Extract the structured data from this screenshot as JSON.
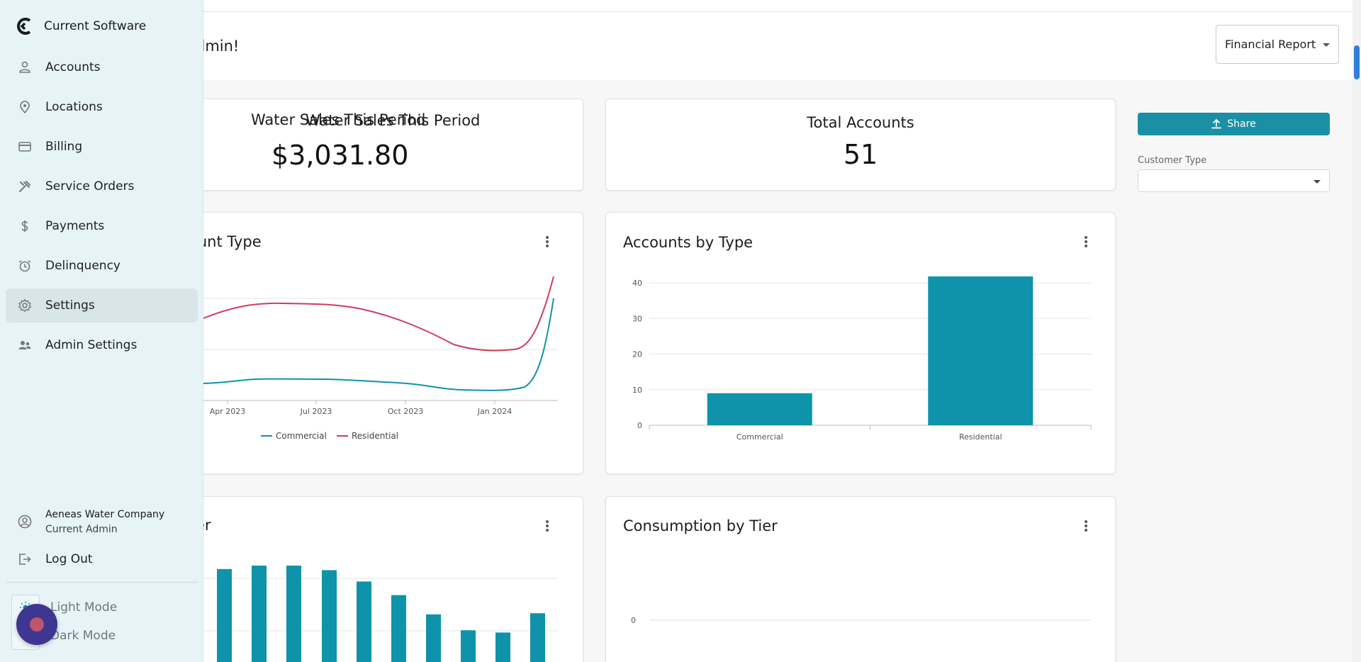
{
  "colors": {
    "teal": "#0f93ab",
    "crimson": "#cf3d5f",
    "sidebar_bg": "#e7f4f7",
    "fab": "#3e3690"
  },
  "header": {
    "welcome": "dmin!",
    "report_select": "Financial Report"
  },
  "stats": {
    "water_sales_title": "Water Sales This Period",
    "water_sales_value": "$3,031.80",
    "total_accounts_title": "Total Accounts",
    "total_accounts_value": "51"
  },
  "side_panel": {
    "share_label": "Share",
    "customer_type_label": "Customer Type",
    "customer_type_value": ""
  },
  "sidebar": {
    "brand": "Current Software",
    "items": [
      {
        "label": "Accounts",
        "icon": "person-icon"
      },
      {
        "label": "Locations",
        "icon": "location-pin-icon"
      },
      {
        "label": "Billing",
        "icon": "credit-card-icon"
      },
      {
        "label": "Service Orders",
        "icon": "tools-icon"
      },
      {
        "label": "Payments",
        "icon": "dollar-icon"
      },
      {
        "label": "Delinquency",
        "icon": "alarm-clock-icon"
      },
      {
        "label": "Settings",
        "icon": "gear-icon"
      },
      {
        "label": "Admin Settings",
        "icon": "people-icon"
      }
    ],
    "user_name": "Aeneas Water Company",
    "user_role": "Current Admin",
    "logout": "Log Out",
    "light_mode": "Light Mode",
    "dark_mode": "Dark Mode"
  },
  "chart_data": [
    {
      "type": "line",
      "title": "ount Type",
      "x": [
        "Apr 2023",
        "Jul 2023",
        "Oct 2023",
        "Jan 2024"
      ],
      "series": [
        {
          "name": "Commercial",
          "color": "#0f93ab"
        },
        {
          "name": "Residential",
          "color": "#cf3d5f"
        }
      ]
    },
    {
      "type": "bar",
      "title": "Accounts by Type",
      "categories": [
        "Commercial",
        "Residential"
      ],
      "values": [
        9,
        42
      ],
      "ylim": [
        0,
        40
      ],
      "yticks": [
        0,
        10,
        20,
        30,
        40
      ]
    },
    {
      "type": "bar",
      "title": "er",
      "values": [
        82,
        85,
        85,
        81,
        71,
        59,
        42,
        28,
        26,
        43
      ]
    },
    {
      "type": "bar",
      "title": "Consumption by Tier",
      "yticks": [
        0
      ],
      "values": []
    }
  ]
}
